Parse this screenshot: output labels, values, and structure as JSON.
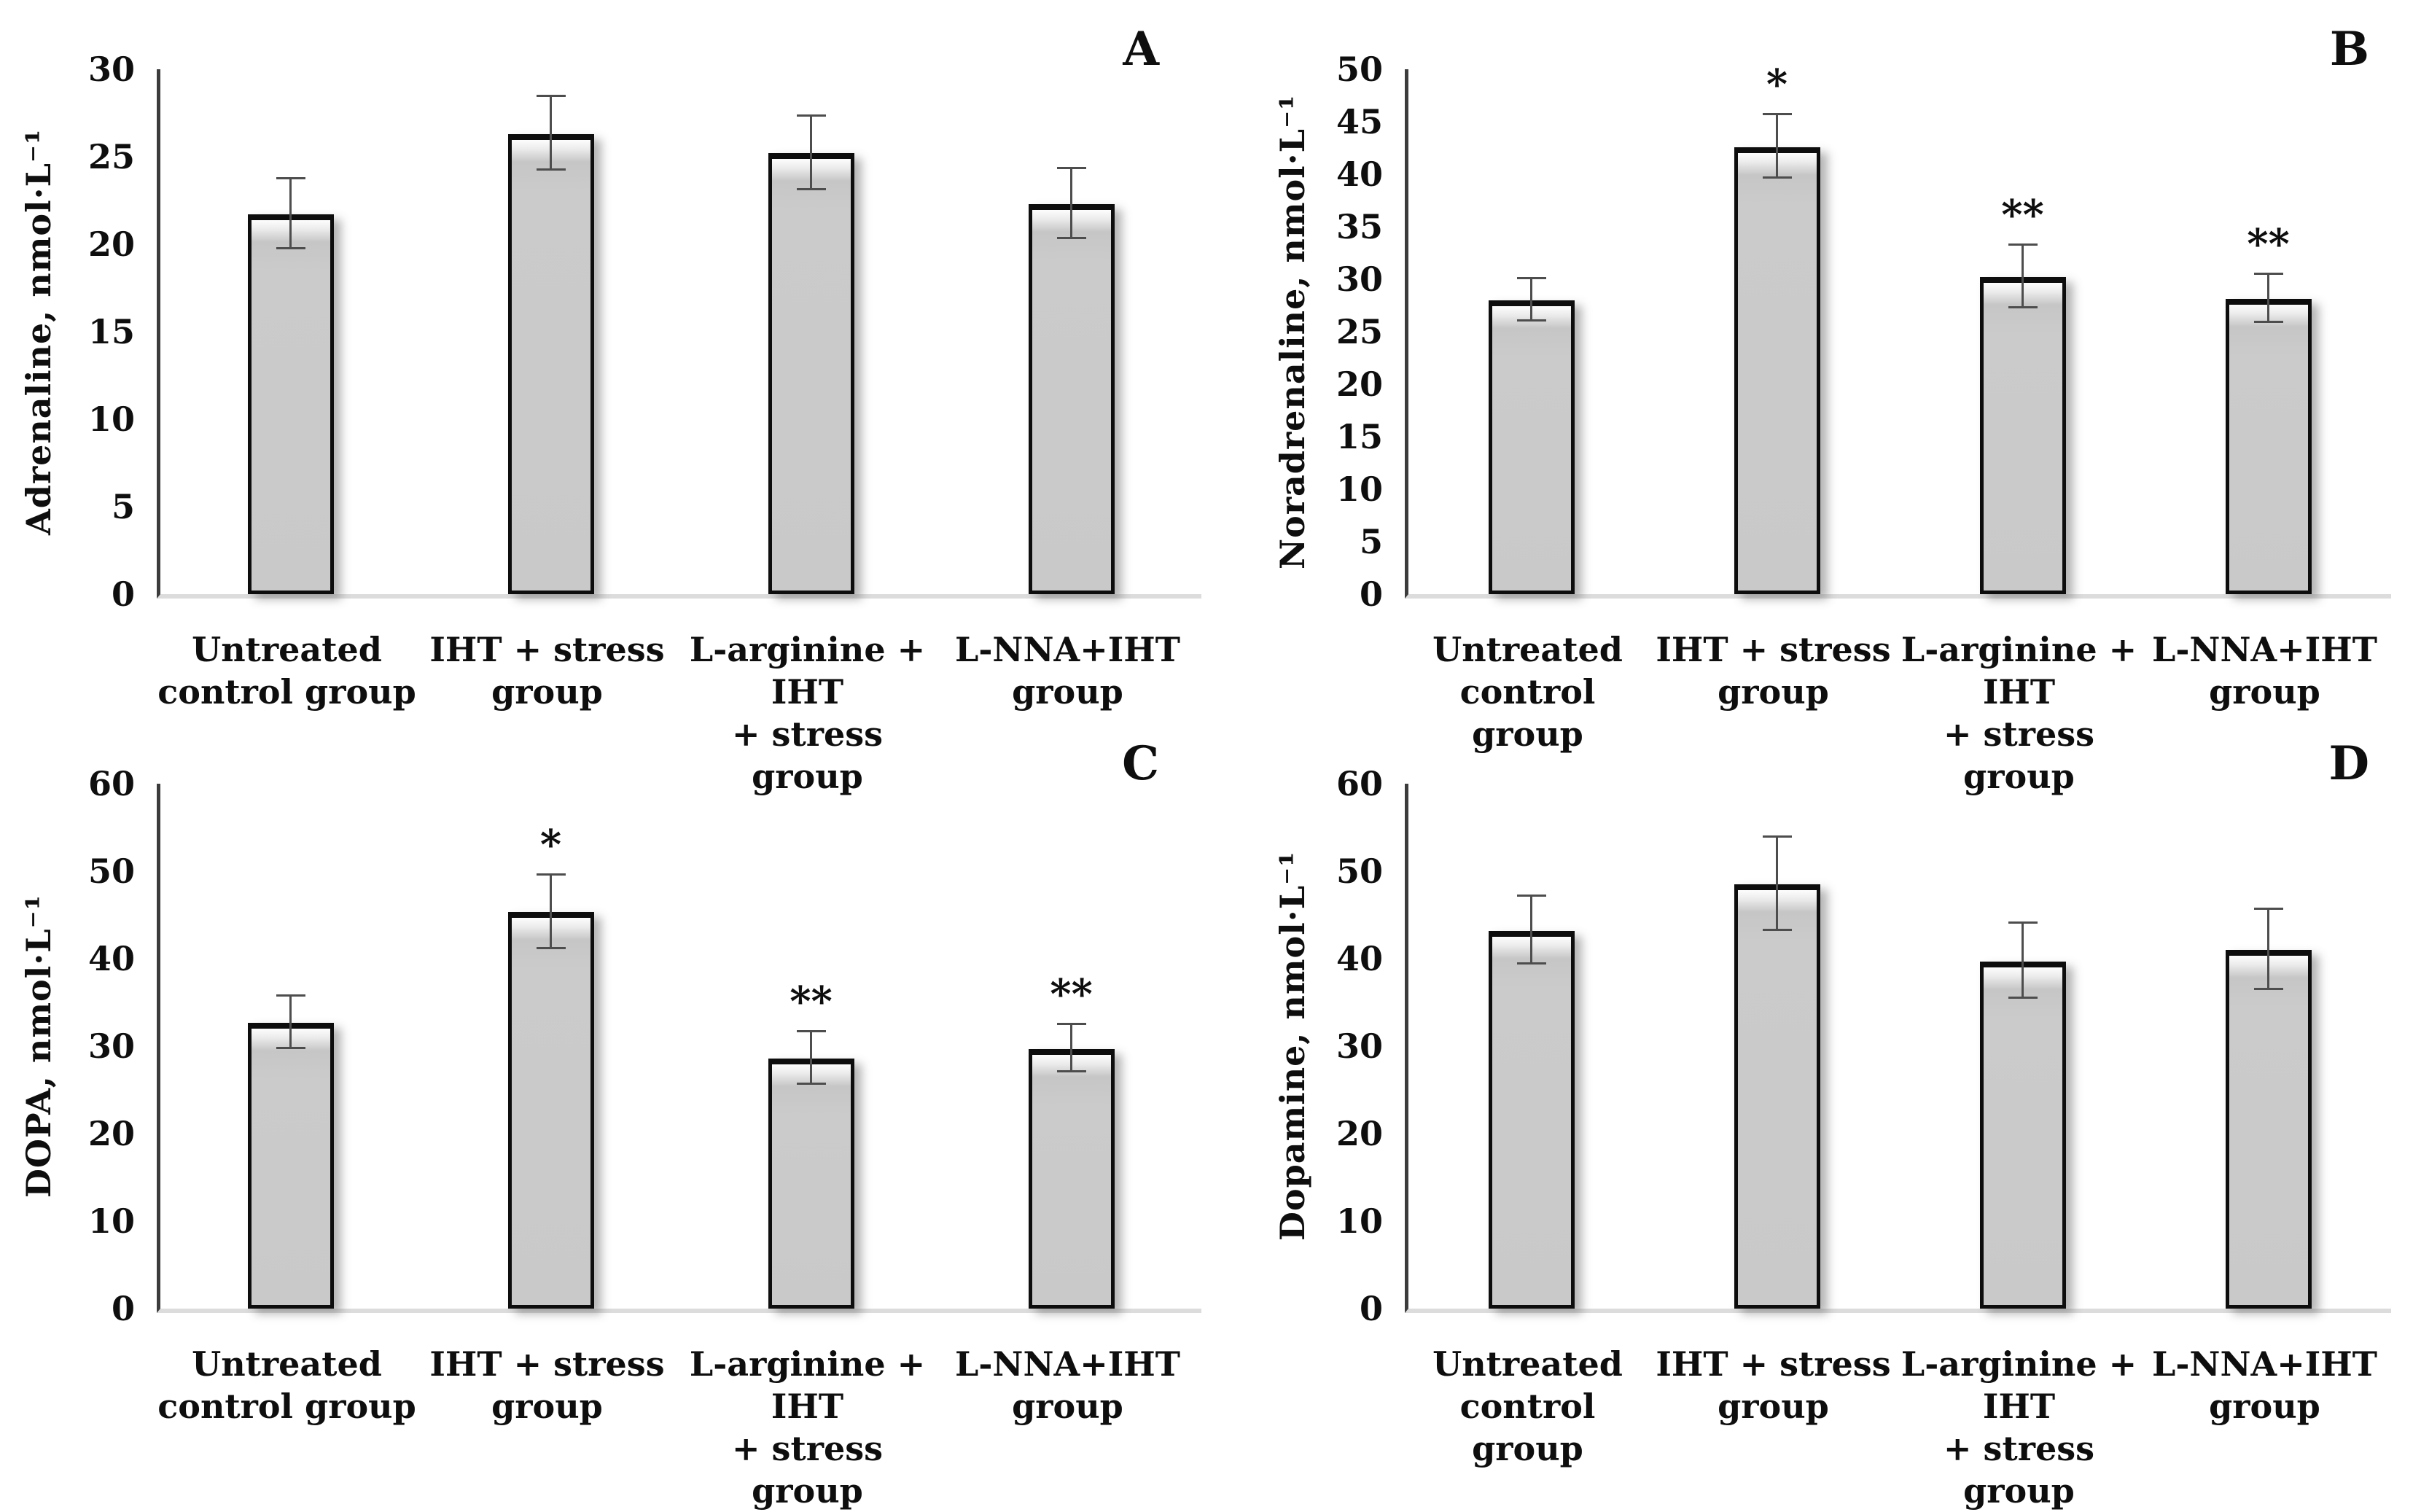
{
  "figure": {
    "panel_letters": [
      "A",
      "B",
      "C",
      "D"
    ],
    "bar_fill_color": "#cbcbcb",
    "bar_border_color": "#0d0d0d",
    "error_bar_color": "#4d4d4d",
    "text_color": "#0e0e0e"
  },
  "chart_data": [
    {
      "type": "bar",
      "panel_label": "A",
      "title": "",
      "xlabel": "",
      "ylabel": "Adrenaline, nmol·L⁻¹",
      "ylim": [
        0,
        30
      ],
      "ytick_step": 5,
      "grid": false,
      "legend_position": "none",
      "categories": [
        [
          "Untreated",
          "control group"
        ],
        [
          "IHT + stress",
          "group"
        ],
        [
          "L-arginine + IHT",
          "+ stress group"
        ],
        [
          "L-NNA+IHT",
          "group"
        ]
      ],
      "values": [
        21.7,
        26.3,
        25.2,
        22.3
      ],
      "errors": [
        2.0,
        2.1,
        2.1,
        2.0
      ],
      "annotations": [
        "",
        "",
        "",
        ""
      ]
    },
    {
      "type": "bar",
      "panel_label": "B",
      "title": "",
      "xlabel": "",
      "ylabel": "Noradrenaline, nmol·L⁻¹",
      "ylim": [
        0,
        50
      ],
      "ytick_step": 5,
      "grid": false,
      "legend_position": "none",
      "categories": [
        [
          "Untreated",
          "control group"
        ],
        [
          "IHT + stress",
          "group"
        ],
        [
          "L-arginine + IHT",
          "+ stress group"
        ],
        [
          "L-NNA+IHT",
          "group"
        ]
      ],
      "values": [
        28.0,
        42.6,
        30.2,
        28.1
      ],
      "errors": [
        2.0,
        3.0,
        3.0,
        2.3
      ],
      "annotations": [
        "",
        "*",
        "**",
        "**"
      ]
    },
    {
      "type": "bar",
      "panel_label": "C",
      "title": "",
      "xlabel": "",
      "ylabel": "DOPA, nmol·L⁻¹",
      "ylim": [
        0,
        60
      ],
      "ytick_step": 10,
      "grid": false,
      "legend_position": "none",
      "categories": [
        [
          "Untreated",
          "control group"
        ],
        [
          "IHT + stress",
          "group"
        ],
        [
          "L-arginine + IHT",
          "+ stress group"
        ],
        [
          "L-NNA+IHT",
          "group"
        ]
      ],
      "values": [
        32.7,
        45.3,
        28.6,
        29.7
      ],
      "errors": [
        3.0,
        4.2,
        3.0,
        2.7
      ],
      "annotations": [
        "",
        "*",
        "**",
        "**"
      ]
    },
    {
      "type": "bar",
      "panel_label": "D",
      "title": "",
      "xlabel": "",
      "ylabel": "Dopamine, nmol·L⁻¹",
      "ylim": [
        0,
        60
      ],
      "ytick_step": 10,
      "grid": false,
      "legend_position": "none",
      "categories": [
        [
          "Untreated",
          "control group"
        ],
        [
          "IHT + stress",
          "group"
        ],
        [
          "L-arginine + IHT",
          "+ stress group"
        ],
        [
          "L-NNA+IHT",
          "group"
        ]
      ],
      "values": [
        43.2,
        48.5,
        39.7,
        41.0
      ],
      "errors": [
        3.9,
        5.3,
        4.3,
        4.6
      ],
      "annotations": [
        "",
        "",
        "",
        ""
      ]
    }
  ]
}
